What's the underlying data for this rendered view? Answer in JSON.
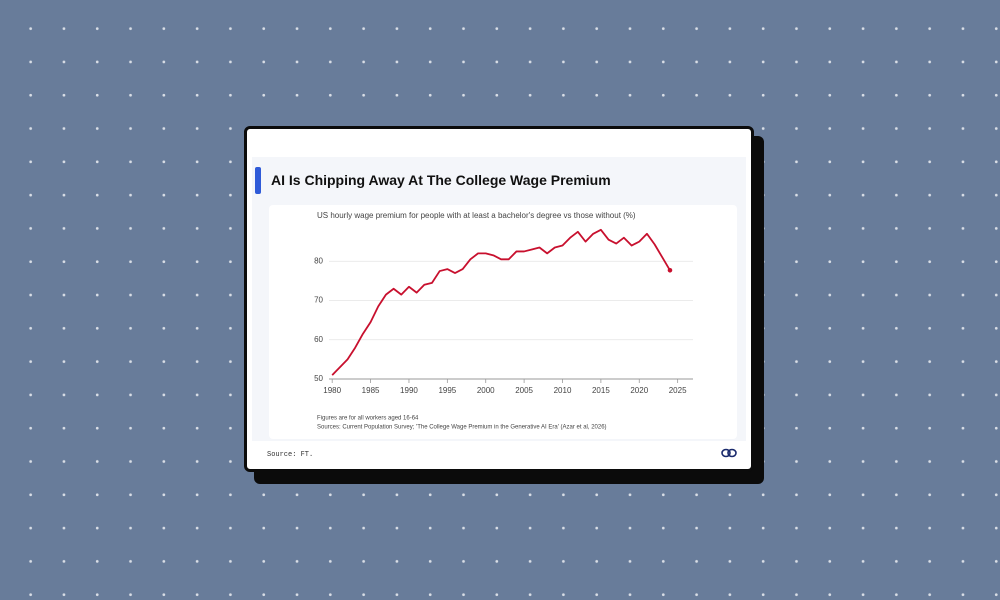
{
  "chart_data": {
    "type": "line",
    "title": "AI Is Chipping Away At The College Wage Premium",
    "subtitle": "US hourly wage premium for people with at least a bachelor's degree vs those without (%)",
    "notes": [
      "Figures are for all workers aged 16-64",
      "Sources: Current Population Survey; 'The College Wage Premium in the Generative AI Era' (Azar et al, 2026)"
    ],
    "x": [
      1980,
      1981,
      1982,
      1983,
      1984,
      1985,
      1986,
      1987,
      1988,
      1989,
      1990,
      1991,
      1992,
      1993,
      1994,
      1995,
      1996,
      1997,
      1998,
      1999,
      2000,
      2001,
      2002,
      2003,
      2004,
      2005,
      2006,
      2007,
      2008,
      2009,
      2010,
      2011,
      2012,
      2013,
      2014,
      2015,
      2016,
      2017,
      2018,
      2019,
      2020,
      2021,
      2022,
      2023,
      2024
    ],
    "values": [
      51,
      53,
      55,
      58,
      61.5,
      64.5,
      68.5,
      71.5,
      73,
      71.5,
      73.5,
      72,
      74,
      74.5,
      77.5,
      78,
      77,
      78,
      80.5,
      82,
      82,
      81.5,
      80.5,
      80.5,
      82.5,
      82.5,
      83,
      83.5,
      82,
      83.5,
      84,
      86,
      87.5,
      85,
      87,
      88,
      85.5,
      84.5,
      86,
      84,
      85,
      87,
      84.3,
      81,
      77.7
    ],
    "color": "#c8102e",
    "xlim": [
      1977.5,
      2027
    ],
    "ylim": [
      50,
      90
    ],
    "xticks": [
      1980,
      1985,
      1990,
      1995,
      2000,
      2005,
      2010,
      2015,
      2020,
      2025
    ],
    "yticks": [
      50,
      60,
      70,
      80
    ],
    "grid": true
  },
  "source": "Source: FT."
}
